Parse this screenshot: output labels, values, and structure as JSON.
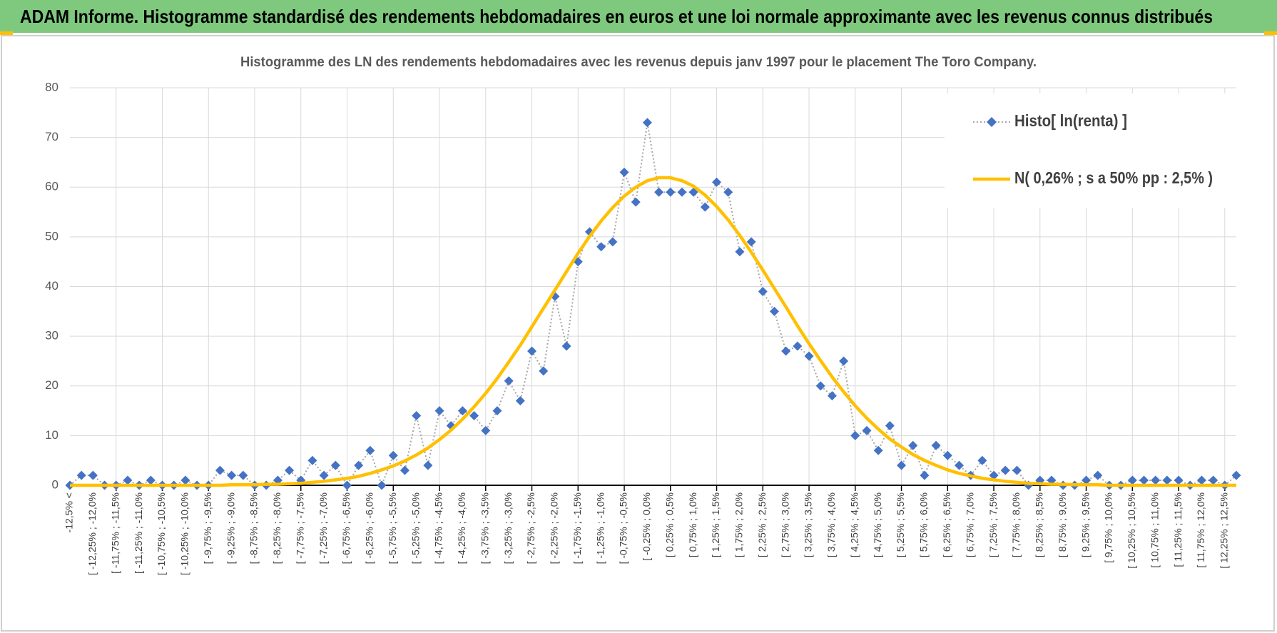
{
  "header": {
    "title": "ADAM Informe. Histogramme standardisé des rendements hebdomadaires en euros et une loi normale approximante avec les revenus connus distribués"
  },
  "chart_data": {
    "type": "line",
    "title": "Histogramme des LN des rendements hebdomadaires avec les revenus depuis janv 1997 pour le placement The Toro Company.",
    "categories": [
      "-12,5% <",
      null,
      "[ -12,25% ; -12,0%",
      null,
      "[ -11,75% ; -11,5%",
      null,
      "[ -11,25% ; -11,0%",
      null,
      "[ -10,75% ; -10,5%",
      null,
      "[ -10,25% ; -10,0%",
      null,
      "[ -9,75% ; -9,5%",
      null,
      "[ -9,25% ; -9,0%",
      null,
      "[ -8,75% ; -8,5%",
      null,
      "[ -8,25% ; -8,0%",
      null,
      "[ -7,75% ; -7,5%",
      null,
      "[ -7,25% ; -7,0%",
      null,
      "[ -6,75% ; -6,5%",
      null,
      "[ -6,25% ; -6,0%",
      null,
      "[ -5,75% ; -5,5%",
      null,
      "[ -5,25% ; -5,0%",
      null,
      "[ -4,75% ; -4,5%",
      null,
      "[ -4,25% ; -4,0%",
      null,
      "[ -3,75% ; -3,5%",
      null,
      "[ -3,25% ; -3,0%",
      null,
      "[ -2,75% ; -2,5%",
      null,
      "[ -2,25% ; -2,0%",
      null,
      "[ -1,75% ; -1,5%",
      null,
      "[ -1,25% ; -1,0%",
      null,
      "[ -0,75% ; -0,5%",
      null,
      "[ -0,25% ; 0,0%",
      null,
      "[ 0,25% ; 0,5%",
      null,
      "[ 0,75% ; 1,0%",
      null,
      "[ 1,25% ; 1,5%",
      null,
      "[ 1,75% ; 2,0%",
      null,
      "[ 2,25% ; 2,5%",
      null,
      "[ 2,75% ; 3,0%",
      null,
      "[ 3,25% ; 3,5%",
      null,
      "[ 3,75% ; 4,0%",
      null,
      "[ 4,25% ; 4,5%",
      null,
      "[ 4,75% ; 5,0%",
      null,
      "[ 5,25% ; 5,5%",
      null,
      "[ 5,75% ; 6,0%",
      null,
      "[ 6,25% ; 6,5%",
      null,
      "[ 6,75% ; 7,0%",
      null,
      "[ 7,25% ; 7,5%",
      null,
      "[ 7,75% ; 8,0%",
      null,
      "[ 8,25% ; 8,5%",
      null,
      "[ 8,75% ; 9,0%",
      null,
      "[ 9,25% ; 9,5%",
      null,
      "[ 9,75% ; 10,0%",
      null,
      "[ 10,25% ; 10,5%",
      null,
      "[ 10,75% ; 11,0%",
      null,
      "[ 11,25% ; 11,5%",
      null,
      "[ 11,75% ; 12,0%",
      null,
      "[ 12,25% ; 12,5%",
      null
    ],
    "series": [
      {
        "name": "Histo[ ln(renta) ]",
        "color": "#4472c4",
        "line_color": "#a6a6a6",
        "marker": "diamond",
        "values": [
          0,
          2,
          2,
          0,
          0,
          1,
          0,
          1,
          0,
          0,
          1,
          0,
          0,
          3,
          2,
          2,
          0,
          0,
          1,
          3,
          1,
          5,
          2,
          4,
          0,
          4,
          7,
          0,
          6,
          3,
          14,
          4,
          15,
          12,
          15,
          14,
          11,
          15,
          21,
          17,
          27,
          23,
          38,
          28,
          45,
          51,
          48,
          49,
          63,
          57,
          73,
          59,
          59,
          59,
          59,
          56,
          61,
          59,
          47,
          49,
          39,
          35,
          27,
          28,
          26,
          20,
          18,
          25,
          10,
          11,
          7,
          12,
          4,
          8,
          2,
          8,
          6,
          4,
          2,
          5,
          2,
          3,
          3,
          0,
          1,
          1,
          0,
          0,
          1,
          2,
          0,
          0,
          1,
          1,
          1,
          1,
          1,
          0,
          1,
          1,
          0,
          2
        ]
      },
      {
        "name": "N( 0,26% ; s a 50% pp : 2,5% )",
        "color": "#ffc000",
        "marker": "none",
        "values": [
          0,
          0,
          0,
          0,
          0,
          0,
          0,
          0,
          0,
          0,
          0,
          0,
          0,
          0,
          0.1,
          0.1,
          0.1,
          0.2,
          0.2,
          0.3,
          0.4,
          0.6,
          0.8,
          1.1,
          1.4,
          1.8,
          2.4,
          3.1,
          3.9,
          4.9,
          6.1,
          7.5,
          9.2,
          11.1,
          13.3,
          15.8,
          18.5,
          21.5,
          24.8,
          28.2,
          31.9,
          35.6,
          39.3,
          43.0,
          46.7,
          50.1,
          53.2,
          55.9,
          58.2,
          60.0,
          61.3,
          61.9,
          61.9,
          61.3,
          60.2,
          58.4,
          56.1,
          53.4,
          50.3,
          46.9,
          43.3,
          39.6,
          35.9,
          32.1,
          28.5,
          25.1,
          21.8,
          18.8,
          16.0,
          13.5,
          11.3,
          9.3,
          7.7,
          6.2,
          5.0,
          4.0,
          3.1,
          2.4,
          1.9,
          1.4,
          1.1,
          0.8,
          0.6,
          0.4,
          0.3,
          0.2,
          0.2,
          0.1,
          0.1,
          0.1,
          0,
          0,
          0,
          0,
          0,
          0,
          0,
          0,
          0,
          0,
          0,
          0
        ]
      }
    ],
    "ylim": [
      0,
      80
    ],
    "yticks": [
      0,
      10,
      20,
      30,
      40,
      50,
      60,
      70,
      80
    ],
    "grid": true,
    "legend": "upper right"
  }
}
